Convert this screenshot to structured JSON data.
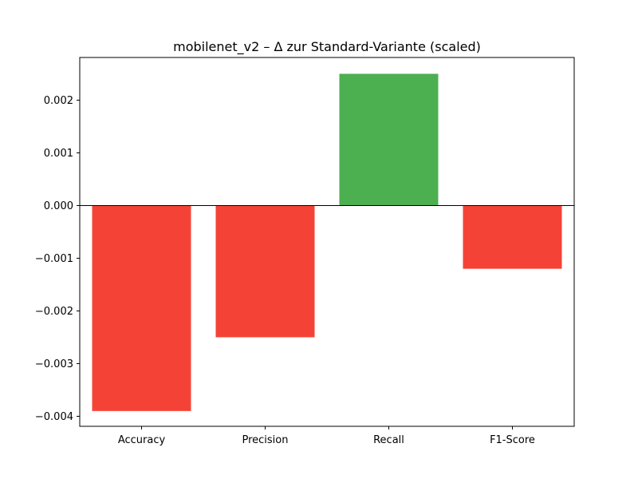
{
  "chart_data": {
    "type": "bar",
    "title": "mobilenet_v2 – Δ zur Standard-Variante (scaled)",
    "xlabel": "",
    "ylabel": "",
    "categories": [
      "Accuracy",
      "Precision",
      "Recall",
      "F1-Score"
    ],
    "values": [
      -0.0039,
      -0.0025,
      0.0025,
      -0.0012
    ],
    "ylim": [
      -0.00419,
      0.00281
    ],
    "yticks": [
      0.002,
      0.001,
      0.0,
      -0.001,
      -0.002,
      -0.003,
      -0.004
    ],
    "ytick_labels": [
      "0.002",
      "0.001",
      "0.000",
      "−0.001",
      "−0.002",
      "−0.003",
      "−0.004"
    ],
    "grid": false,
    "zero_line": true,
    "colors": {
      "positive": "#4caf50",
      "negative": "#f44336"
    }
  }
}
